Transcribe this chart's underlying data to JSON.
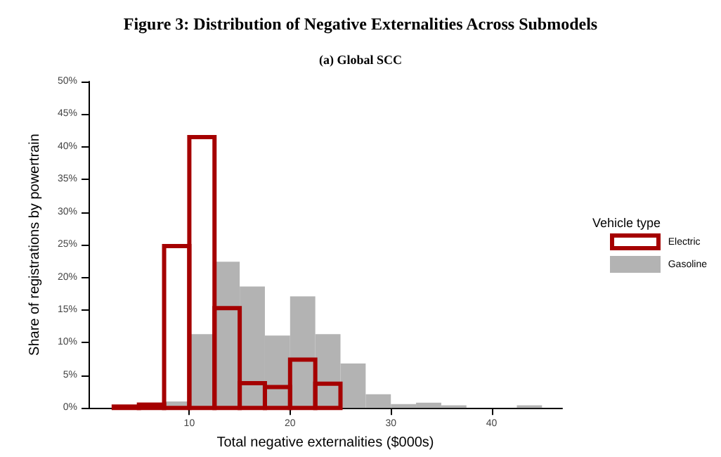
{
  "chart_data": {
    "type": "histogram",
    "title": "Figure 3: Distribution of Negative Externalities Across Submodels",
    "subtitle": "(a) Global SCC",
    "xlabel": "Total negative externalities ($000s)",
    "ylabel": "Share of registrations by powertrain",
    "legend_title": "Vehicle type",
    "legend": "right",
    "grid": false,
    "bins": [
      2.5,
      5,
      7.5,
      10,
      12.5,
      15,
      17.5,
      20,
      22.5,
      25,
      27.5,
      30,
      32.5,
      35,
      37.5,
      40,
      42.5,
      45
    ],
    "series": [
      {
        "name": "Gasoline",
        "color": "#b3b3b3",
        "values": [
          0,
          0,
          1.0,
          11.3,
          22.4,
          18.6,
          11.1,
          17.1,
          11.3,
          6.8,
          2.1,
          0.6,
          0.8,
          0.4,
          0,
          0,
          0.4
        ]
      },
      {
        "name": "Electric",
        "color": "#a50000",
        "values": [
          0.2,
          0.5,
          24.8,
          41.5,
          15.3,
          3.8,
          3.2,
          7.4,
          3.7,
          null,
          null,
          null,
          null,
          null,
          null,
          null,
          null
        ]
      }
    ],
    "xlim": [
      0,
      47
    ],
    "xticks": [
      10,
      20,
      30,
      40
    ],
    "ylim": [
      0,
      50
    ],
    "yticks": [
      {
        "value": 0,
        "label": "0%"
      },
      {
        "value": 5,
        "label": "5%"
      },
      {
        "value": 10,
        "label": "10%"
      },
      {
        "value": 15,
        "label": "15%"
      },
      {
        "value": 20,
        "label": "20%"
      },
      {
        "value": 25,
        "label": "25%"
      },
      {
        "value": 30,
        "label": "30%"
      },
      {
        "value": 35,
        "label": "35%"
      },
      {
        "value": 40,
        "label": "40%"
      },
      {
        "value": 45,
        "label": "45%"
      },
      {
        "value": 50,
        "label": "50%"
      }
    ]
  }
}
